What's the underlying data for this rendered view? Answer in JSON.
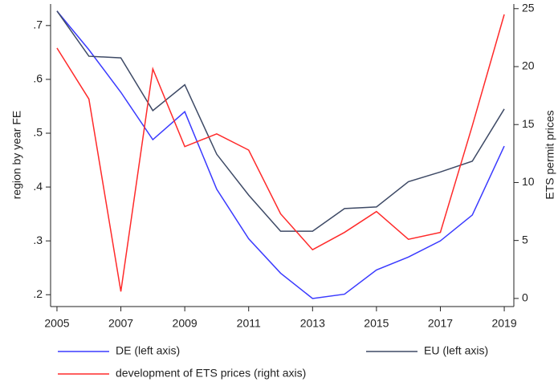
{
  "chart_data": {
    "type": "line",
    "x": [
      2005,
      2006,
      2007,
      2008,
      2009,
      2010,
      2011,
      2012,
      2013,
      2014,
      2015,
      2016,
      2017,
      2018,
      2019
    ],
    "series": [
      {
        "name": "DE (left axis)",
        "color": "#3a3aff",
        "axis": "y",
        "values": [
          0.727,
          0.655,
          0.576,
          0.488,
          0.54,
          0.396,
          0.304,
          0.24,
          0.193,
          0.201,
          0.246,
          0.27,
          0.3,
          0.348,
          0.476
        ]
      },
      {
        "name": "EU (left axis)",
        "color": "#3e4a66",
        "axis": "y",
        "values": [
          0.727,
          0.643,
          0.64,
          0.542,
          0.59,
          0.461,
          0.385,
          0.318,
          0.318,
          0.36,
          0.363,
          0.41,
          0.428,
          0.448,
          0.545
        ]
      },
      {
        "name": "development of ETS prices (right axis)",
        "color": "#ff2a2a",
        "axis": "y2",
        "values": [
          21.6,
          17.2,
          0.6,
          19.8,
          13.1,
          14.2,
          12.8,
          7.3,
          4.2,
          5.7,
          7.5,
          5.1,
          5.7,
          14.9,
          24.5
        ]
      }
    ],
    "xlim": [
      2004.8,
      2019.3
    ],
    "xticks": [
      2005,
      2007,
      2009,
      2011,
      2013,
      2015,
      2017,
      2019
    ],
    "ylim": [
      0.178,
      0.74
    ],
    "yticks": [
      {
        "value": 0.2,
        "label": ".2"
      },
      {
        "value": 0.3,
        "label": ".3"
      },
      {
        "value": 0.4,
        "label": ".4"
      },
      {
        "value": 0.5,
        "label": ".5"
      },
      {
        "value": 0.6,
        "label": ".6"
      },
      {
        "value": 0.7,
        "label": ".7"
      }
    ],
    "y2lim": [
      -0.7,
      25.4
    ],
    "y2ticks": [
      0,
      5,
      10,
      15,
      20,
      25
    ],
    "ylabel": "region by year FE",
    "y2label": "ETS permit prices",
    "legend": "bottom"
  }
}
